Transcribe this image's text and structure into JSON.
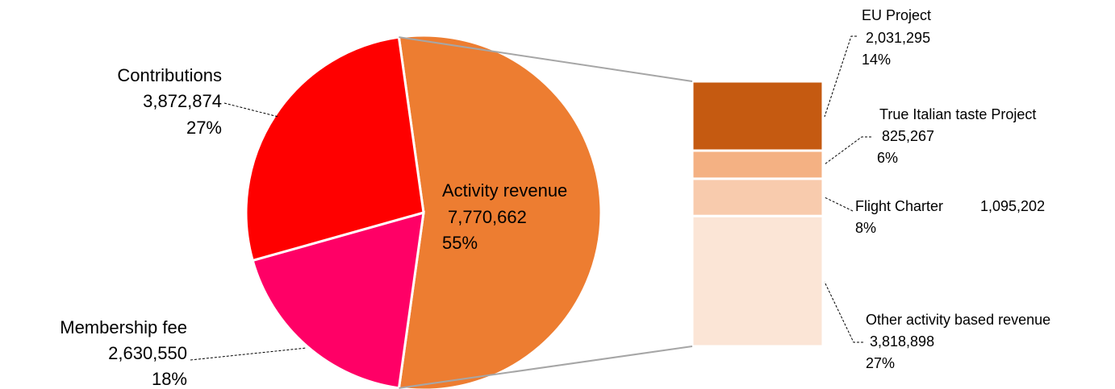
{
  "chart_data": {
    "type": "pie",
    "categories": [
      "Activity revenue",
      "Membership fee",
      "Contributions"
    ],
    "values": [
      7770662,
      2630550,
      3872874
    ],
    "value_labels": [
      "7,770,662",
      "2,630,550",
      "3,872,874"
    ],
    "percents": [
      55,
      18,
      27
    ],
    "percent_labels": [
      "55%",
      "18%",
      "27%"
    ],
    "colors": [
      "#ED7D31",
      "#FF0066",
      "#FF0000"
    ],
    "breakdown": {
      "categories": [
        "EU Project",
        "True Italian taste Project",
        "Flight Charter",
        "Other activity based revenue"
      ],
      "values": [
        2031295,
        825267,
        1095202,
        3818898
      ],
      "value_labels": [
        "2,031,295",
        "825,267",
        "1,095,202",
        "3,818,898"
      ],
      "percents": [
        14,
        6,
        8,
        27
      ],
      "percent_labels": [
        "14%",
        "6%",
        "8%",
        "27%"
      ],
      "colors": [
        "#C55A11",
        "#F4B183",
        "#F8CBAD",
        "#FBE5D6"
      ]
    }
  }
}
